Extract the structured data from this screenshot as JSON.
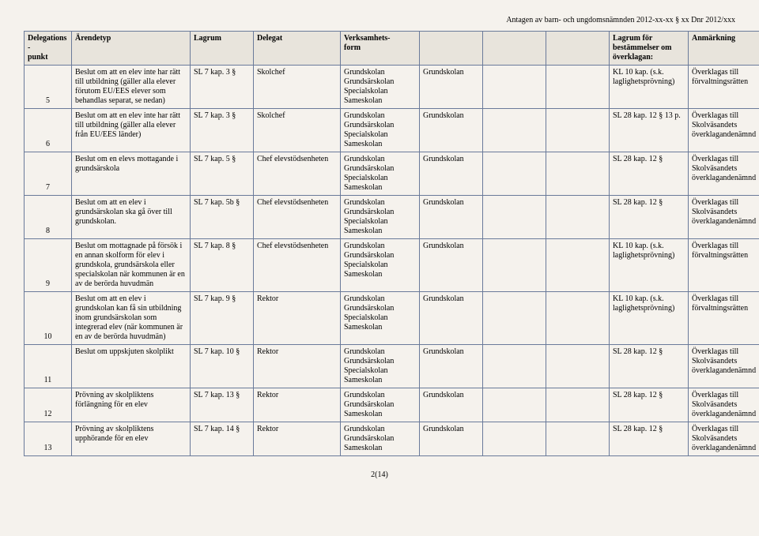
{
  "header_note": "Antagen av barn- och ungdomsnämnden 2012-xx-xx § xx Dnr 2012/xxx",
  "columns": [
    "Delegations-\npunkt",
    "Ärendetyp",
    "Lagrum",
    "Delegat",
    "Verksamhets-\nform",
    "",
    "",
    "",
    "Lagrum för bestämmelser om överklagan:",
    "Anmärkning"
  ],
  "rows": [
    {
      "punkt": "5",
      "arende": "Beslut om att en elev inte har rätt till utbildning (gäller alla elever förutom EU/EES elever som behandlas separat, se nedan)",
      "lagrum": "SL 7 kap. 3 §",
      "delegat": "Skolchef",
      "verk": "Grundskolan\nGrundsärskolan\nSpecialskolan\nSameskolan",
      "b1": "Grundskolan",
      "b2": "",
      "b3": "",
      "lagrum2": "KL 10 kap. (s.k. laglighetsprövning)",
      "anm": "Överklagas till förvaltningsrätten"
    },
    {
      "punkt": "6",
      "arende": "Beslut om att en elev inte har rätt till utbildning (gäller alla elever från EU/EES länder)",
      "lagrum": "SL 7 kap. 3 §",
      "delegat": "Skolchef",
      "verk": "Grundskolan\nGrundsärskolan\nSpecialskolan\nSameskolan",
      "b1": "Grundskolan",
      "b2": "",
      "b3": "",
      "lagrum2": "SL 28 kap. 12 § 13 p.",
      "anm": "Överklagas till Skolväsandets överklagandenämnd"
    },
    {
      "punkt": "7",
      "arende": "Beslut om en elevs mottagande i grundsärskola",
      "lagrum": "SL 7 kap. 5 §",
      "delegat": "Chef elevstödsenheten",
      "verk": "Grundskolan\nGrundsärskolan\nSpecialskolan\nSameskolan",
      "b1": "Grundskolan",
      "b2": "",
      "b3": "",
      "lagrum2": "SL 28 kap. 12 §",
      "anm": "Överklagas till Skolväsandets överklagandenämnd"
    },
    {
      "punkt": "8",
      "arende": "Beslut om att en elev i grundsärskolan ska gå över till grundskolan.",
      "lagrum": "SL 7 kap. 5b §",
      "delegat": "Chef elevstödsenheten",
      "verk": "Grundskolan\nGrundsärskolan\nSpecialskolan\nSameskolan",
      "b1": "Grundskolan",
      "b2": "",
      "b3": "",
      "lagrum2": "SL 28 kap. 12 §",
      "anm": "Överklagas till Skolväsandets överklagandenämnd"
    },
    {
      "punkt": "9",
      "arende": "Beslut om mottagnade på försök i en annan skolform för elev i grundskola, grundsärskola eller specialskolan när kommunen är en av de berörda huvudmän",
      "lagrum": "SL 7 kap. 8 §",
      "delegat": "Chef elevstödsenheten",
      "verk": "Grundskolan\nGrundsärskolan\nSpecialskolan\nSameskolan",
      "b1": "Grundskolan",
      "b2": "",
      "b3": "",
      "lagrum2": "KL 10 kap. (s.k. laglighetsprövning)",
      "anm": "Överklagas till förvaltningsrätten"
    },
    {
      "punkt": "10",
      "arende": "Beslut om att en elev i grundskolan kan få sin utbildning inom grundsärskolan som integrerad elev (när kommunen är en av de berörda huvudmän)",
      "lagrum": "SL 7 kap. 9 §",
      "delegat": "Rektor",
      "verk": "Grundskolan\nGrundsärskolan\nSpecialskolan\nSameskolan",
      "b1": "Grundskolan",
      "b2": "",
      "b3": "",
      "lagrum2": "KL 10 kap. (s.k. laglighetsprövning)",
      "anm": "Överklagas till förvaltningsrätten"
    },
    {
      "punkt": "11",
      "arende": "Beslut om uppskjuten skolplikt",
      "lagrum": "SL 7 kap. 10 §",
      "delegat": "Rektor",
      "verk": "Grundskolan\nGrundsärskolan\nSpecialskolan\nSameskolan",
      "b1": "Grundskolan",
      "b2": "",
      "b3": "",
      "lagrum2": "SL 28 kap. 12 §",
      "anm": "Överklagas till Skolväsandets överklagandenämnd"
    },
    {
      "punkt": "12",
      "arende": "Prövning av skolpliktens förlängning för en elev",
      "lagrum": "SL 7 kap. 13 §",
      "delegat": "Rektor",
      "verk": "Grundskolan\nGrundsärskolan\nSameskolan",
      "b1": "Grundskolan",
      "b2": "",
      "b3": "",
      "lagrum2": "SL 28 kap. 12 §",
      "anm": "Överklagas till Skolväsandets överklagandenämnd"
    },
    {
      "punkt": "13",
      "arende": "Prövning av skolpliktens upphörande för en elev",
      "lagrum": "SL 7 kap. 14 §",
      "delegat": "Rektor",
      "verk": "Grundskolan\nGrundsärskolan\nSameskolan",
      "b1": "Grundskolan",
      "b2": "",
      "b3": "",
      "lagrum2": "SL 28 kap. 12 §",
      "anm": "Överklagas till Skolväsandets överklagandenämnd"
    }
  ],
  "footer": "2(14)"
}
